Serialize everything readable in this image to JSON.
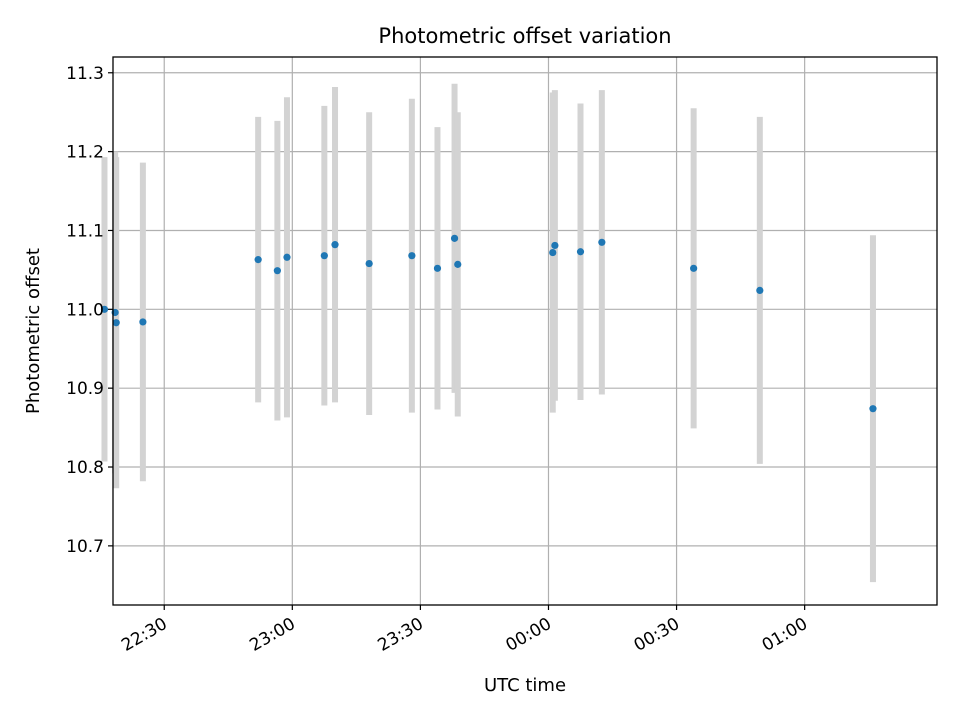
{
  "chart_data": {
    "type": "scatter",
    "title": "Photometric offset variation",
    "xlabel": "UTC time",
    "ylabel": "Photometric offset",
    "x_axis": {
      "kind": "time",
      "unit": "minutes",
      "min": "22:18",
      "max": "01:31",
      "tick_labels": [
        "22:30",
        "23:00",
        "23:30",
        "00:00",
        "00:30",
        "01:00"
      ]
    },
    "y_axis": {
      "min": 10.625,
      "max": 11.32,
      "ticks": [
        10.7,
        10.8,
        10.9,
        11.0,
        11.1,
        11.2,
        11.3
      ],
      "tick_labels": [
        "10.7",
        "10.8",
        "10.9",
        "11.0",
        "11.1",
        "11.2",
        "11.3"
      ]
    },
    "grid": true,
    "colors": {
      "point": "#1f77b4",
      "errorbar": "#d3d3d3",
      "grid": "#b0b0b0",
      "frame": "#000000"
    },
    "points": [
      {
        "x": "22:16:00",
        "y": 11.0,
        "err": 0.193
      },
      {
        "x": "22:18:30",
        "y": 10.996,
        "err": 0.204
      },
      {
        "x": "22:18:45",
        "y": 10.983,
        "err": 0.21
      },
      {
        "x": "22:25:00",
        "y": 10.984,
        "err": 0.202
      },
      {
        "x": "22:52:00",
        "y": 11.063,
        "err": 0.181
      },
      {
        "x": "22:56:30",
        "y": 11.049,
        "err": 0.19
      },
      {
        "x": "22:58:45",
        "y": 11.066,
        "err": 0.203
      },
      {
        "x": "23:07:30",
        "y": 11.068,
        "err": 0.19
      },
      {
        "x": "23:10:00",
        "y": 11.082,
        "err": 0.2
      },
      {
        "x": "23:18:00",
        "y": 11.058,
        "err": 0.192
      },
      {
        "x": "23:28:00",
        "y": 11.068,
        "err": 0.199
      },
      {
        "x": "23:34:00",
        "y": 11.052,
        "err": 0.179
      },
      {
        "x": "23:38:00",
        "y": 11.09,
        "err": 0.196
      },
      {
        "x": "23:38:45",
        "y": 11.057,
        "err": 0.193
      },
      {
        "x": "00:01:00",
        "y": 11.072,
        "err": 0.203
      },
      {
        "x": "00:01:30",
        "y": 11.081,
        "err": 0.197
      },
      {
        "x": "00:07:30",
        "y": 11.073,
        "err": 0.188
      },
      {
        "x": "00:12:30",
        "y": 11.085,
        "err": 0.193
      },
      {
        "x": "00:34:00",
        "y": 11.052,
        "err": 0.203
      },
      {
        "x": "00:49:30",
        "y": 11.024,
        "err": 0.22
      },
      {
        "x": "01:16:00",
        "y": 10.874,
        "err": 0.22
      }
    ]
  }
}
